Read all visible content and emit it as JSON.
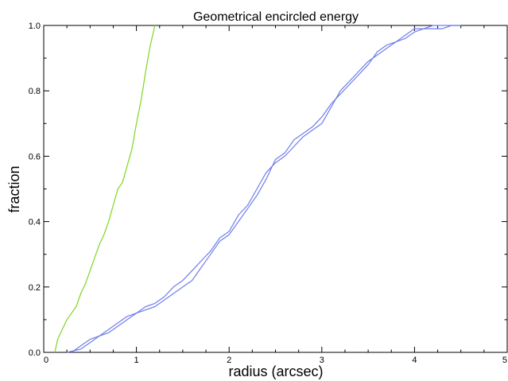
{
  "chart_data": {
    "type": "line",
    "title": "Geometrical encircled energy",
    "xlabel": "radius (arcsec)",
    "ylabel": "fraction",
    "xlim": [
      0,
      5
    ],
    "ylim": [
      0,
      1
    ],
    "xticks": [
      "0",
      "1",
      "2",
      "3",
      "4",
      "5"
    ],
    "yticks": [
      "0.0",
      "0.2",
      "0.4",
      "0.6",
      "0.8",
      "1.0"
    ],
    "grid": false,
    "legend": "none",
    "series": [
      {
        "color": "#7fd620",
        "x": [
          0.12,
          0.15,
          0.2,
          0.25,
          0.3,
          0.35,
          0.4,
          0.45,
          0.5,
          0.55,
          0.6,
          0.65,
          0.7,
          0.75,
          0.8,
          0.85,
          0.9,
          0.95,
          1.0,
          1.05,
          1.1,
          1.15,
          1.2
        ],
        "y": [
          0.0,
          0.04,
          0.07,
          0.1,
          0.12,
          0.14,
          0.18,
          0.21,
          0.25,
          0.29,
          0.33,
          0.36,
          0.4,
          0.45,
          0.5,
          0.52,
          0.57,
          0.62,
          0.7,
          0.77,
          0.86,
          0.94,
          1.0
        ]
      },
      {
        "color": "#6f7ee8",
        "x": [
          0.25,
          0.4,
          0.5,
          0.6,
          0.7,
          0.8,
          0.9,
          1.0,
          1.1,
          1.2,
          1.3,
          1.4,
          1.5,
          1.6,
          1.7,
          1.8,
          1.9,
          2.0,
          2.1,
          2.2,
          2.3,
          2.4,
          2.5,
          2.6,
          2.7,
          2.8,
          2.9,
          3.0,
          3.1,
          3.2,
          3.3,
          3.4,
          3.5,
          3.6,
          3.7,
          3.8,
          3.9,
          4.0,
          4.1,
          4.2,
          4.3,
          4.4,
          4.5
        ],
        "y": [
          0.0,
          0.01,
          0.03,
          0.05,
          0.07,
          0.09,
          0.11,
          0.12,
          0.14,
          0.15,
          0.17,
          0.2,
          0.22,
          0.25,
          0.28,
          0.31,
          0.35,
          0.37,
          0.42,
          0.45,
          0.5,
          0.55,
          0.58,
          0.6,
          0.63,
          0.66,
          0.68,
          0.7,
          0.75,
          0.8,
          0.83,
          0.86,
          0.89,
          0.91,
          0.93,
          0.95,
          0.96,
          0.98,
          0.99,
          0.99,
          0.99,
          1.0,
          1.0
        ]
      },
      {
        "color": "#6f7ee8",
        "x": [
          0.3,
          0.4,
          0.5,
          0.6,
          0.7,
          0.8,
          0.9,
          1.0,
          1.1,
          1.2,
          1.3,
          1.4,
          1.5,
          1.6,
          1.7,
          1.8,
          1.9,
          2.0,
          2.1,
          2.2,
          2.3,
          2.4,
          2.5,
          2.6,
          2.7,
          2.8,
          2.9,
          3.0,
          3.1,
          3.2,
          3.3,
          3.4,
          3.5,
          3.6,
          3.7,
          3.8,
          3.9,
          4.0,
          4.1,
          4.2,
          4.3,
          4.4,
          4.5
        ],
        "y": [
          0.0,
          0.02,
          0.04,
          0.05,
          0.06,
          0.08,
          0.1,
          0.12,
          0.13,
          0.14,
          0.16,
          0.18,
          0.2,
          0.22,
          0.26,
          0.3,
          0.34,
          0.36,
          0.4,
          0.44,
          0.48,
          0.53,
          0.59,
          0.61,
          0.65,
          0.67,
          0.69,
          0.72,
          0.76,
          0.79,
          0.82,
          0.85,
          0.88,
          0.92,
          0.94,
          0.95,
          0.97,
          0.99,
          0.99,
          1.0,
          1.0,
          1.0,
          1.0
        ]
      }
    ]
  }
}
